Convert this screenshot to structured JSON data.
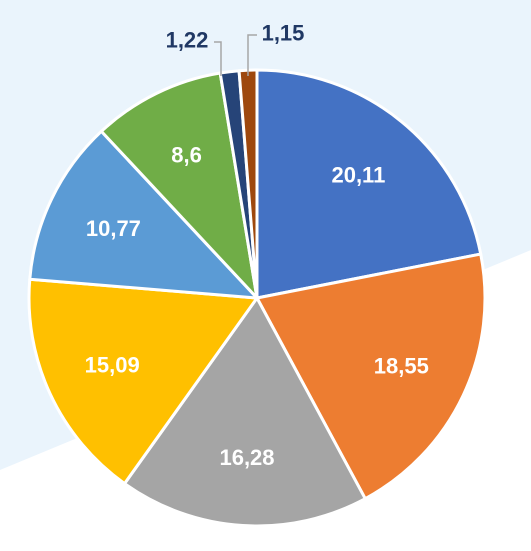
{
  "chart_data": {
    "type": "pie",
    "title": "",
    "start": "top",
    "direction": "clockwise",
    "slices": [
      {
        "label": "20,11",
        "value": 20.11,
        "color": "#4472C4"
      },
      {
        "label": "18,55",
        "value": 18.55,
        "color": "#ED7D31"
      },
      {
        "label": "16,28",
        "value": 16.28,
        "color": "#A5A5A5"
      },
      {
        "label": "15,09",
        "value": 15.09,
        "color": "#FFC000"
      },
      {
        "label": "10,77",
        "value": 10.77,
        "color": "#5B9BD5"
      },
      {
        "label": "8,6",
        "value": 8.6,
        "color": "#70AD47"
      },
      {
        "label": "1,22",
        "value": 1.22,
        "color": "#264478"
      },
      {
        "label": "1,15",
        "value": 1.15,
        "color": "#9E480E"
      }
    ]
  },
  "background": {
    "band_color": "#EAF4FC",
    "page_color": "#FFFFFF"
  },
  "label_colors": {
    "inside": "#FFFFFF",
    "outside": "#203864",
    "leader": "#A6A6A6"
  }
}
